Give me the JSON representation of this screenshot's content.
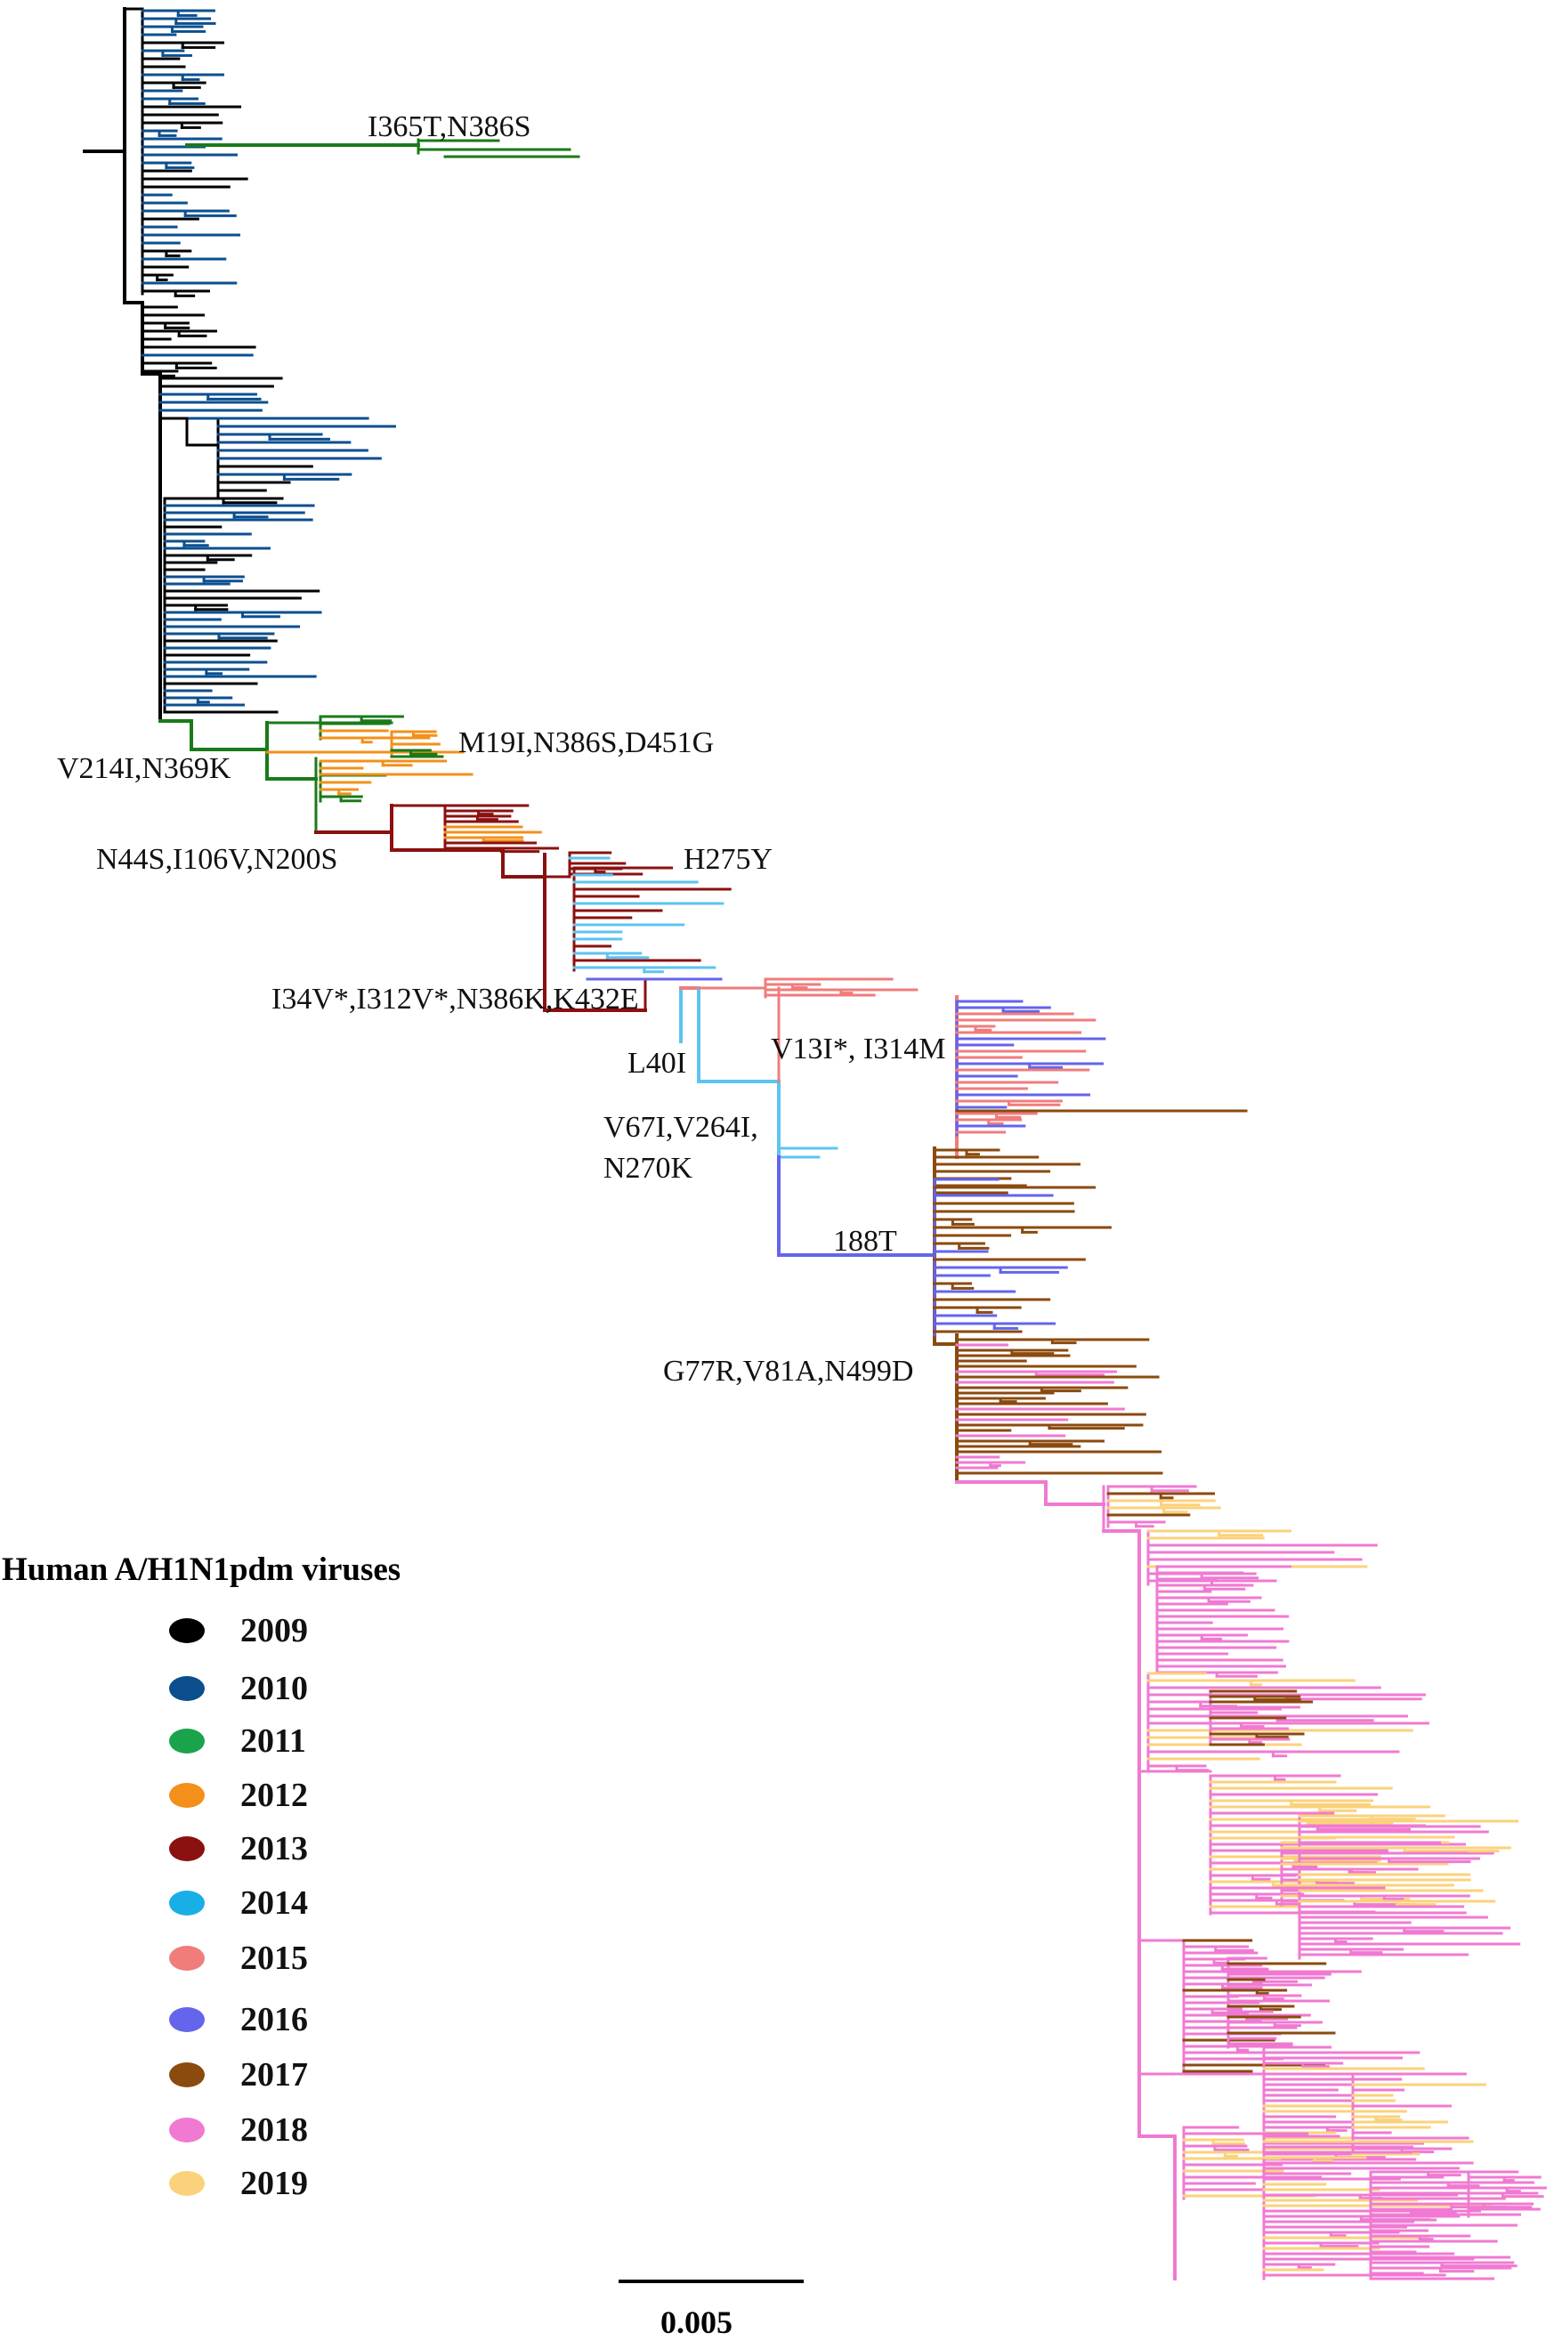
{
  "legend": {
    "title": "Human A/H1N1pdm viruses",
    "items": [
      {
        "year": "2009",
        "color": "#000000"
      },
      {
        "year": "2010",
        "color": "#0a4e8c"
      },
      {
        "year": "2011",
        "color": "#1aa34a"
      },
      {
        "year": "2012",
        "color": "#f39019"
      },
      {
        "year": "2013",
        "color": "#8b1010"
      },
      {
        "year": "2014",
        "color": "#18aee6"
      },
      {
        "year": "2015",
        "color": "#f07c7c"
      },
      {
        "year": "2016",
        "color": "#6464ec"
      },
      {
        "year": "2017",
        "color": "#8b4a0e"
      },
      {
        "year": "2018",
        "color": "#f07ad2"
      },
      {
        "year": "2019",
        "color": "#fbd27c"
      }
    ]
  },
  "mutations": {
    "m1": "I365T,N386S",
    "m2": "M19I,N386S,D451G",
    "m3": "V214I,N369K",
    "m4": "N44S,I106V,N200S",
    "m5": "H275Y",
    "m6": "I34V*,I312V*,N386K,K432E",
    "m7": "L40I",
    "m8": "V13I*, I314M",
    "m9a": "V67I,V264I,",
    "m9b": "N270K",
    "m10": "188T",
    "m11": "G77R,V81A,N499D"
  },
  "scale": {
    "label": "0.005"
  }
}
